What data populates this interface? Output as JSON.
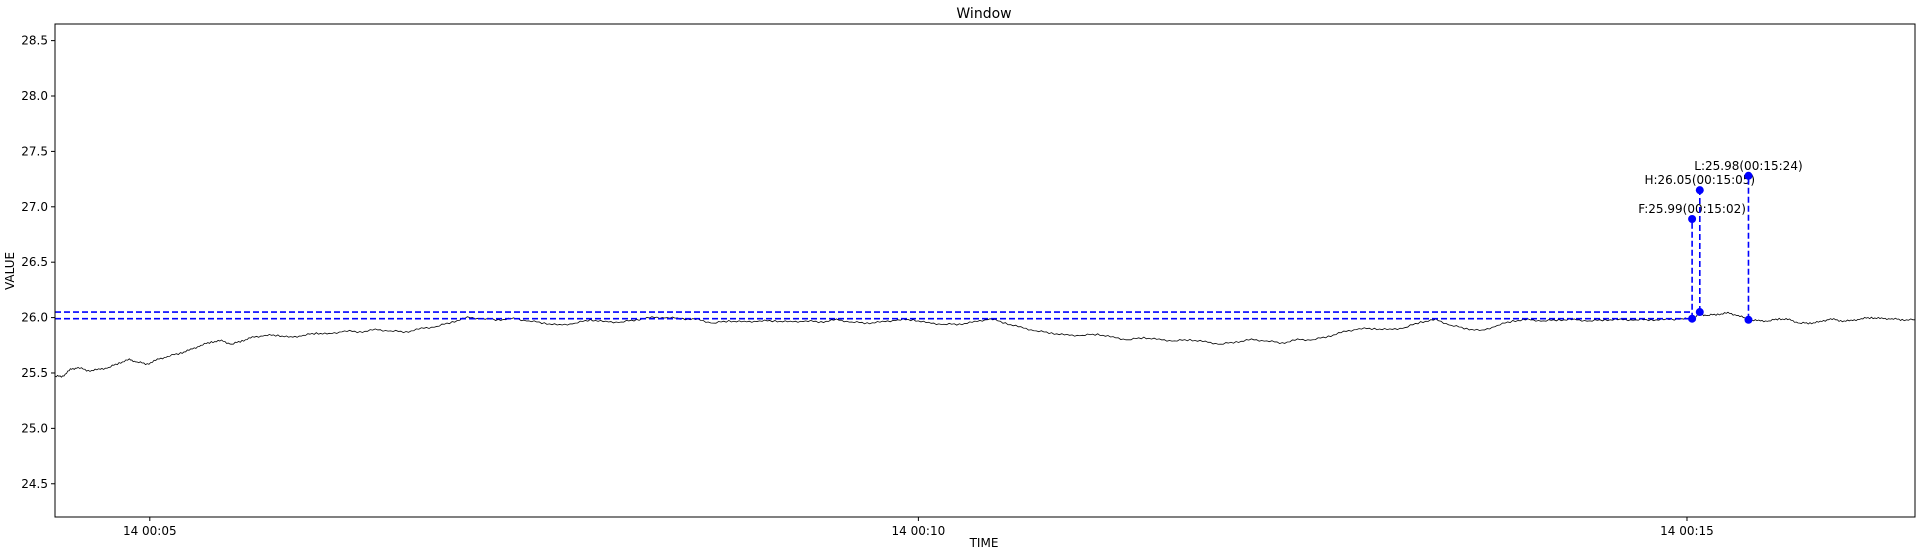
{
  "chart_data": {
    "type": "line",
    "title": "Window",
    "xlabel": "TIME",
    "ylabel": "VALUE",
    "ylim": [
      24.2,
      28.65
    ],
    "xlim_seconds": [
      263,
      989
    ],
    "yticks": [
      24.5,
      25.0,
      25.5,
      26.0,
      26.5,
      27.0,
      27.5,
      28.0,
      28.5
    ],
    "ytick_labels": [
      "24.5",
      "25.0",
      "25.5",
      "26.0",
      "26.5",
      "27.0",
      "27.5",
      "28.0",
      "28.5"
    ],
    "xticks": [
      {
        "t": 300,
        "label": "14 00:05"
      },
      {
        "t": 600,
        "label": "14 00:10"
      },
      {
        "t": 900,
        "label": "14 00:15"
      }
    ],
    "grid": false,
    "series": [
      {
        "color": "#000000",
        "points": [
          [
            263,
            25.47
          ],
          [
            266,
            25.47
          ],
          [
            269,
            25.53
          ],
          [
            272,
            25.55
          ],
          [
            276,
            25.52
          ],
          [
            280,
            25.53
          ],
          [
            284,
            25.55
          ],
          [
            288,
            25.59
          ],
          [
            292,
            25.62
          ],
          [
            295,
            25.6
          ],
          [
            299,
            25.58
          ],
          [
            303,
            25.62
          ],
          [
            307,
            25.65
          ],
          [
            312,
            25.68
          ],
          [
            316,
            25.71
          ],
          [
            320,
            25.75
          ],
          [
            324,
            25.78
          ],
          [
            328,
            25.79
          ],
          [
            332,
            25.76
          ],
          [
            336,
            25.79
          ],
          [
            340,
            25.82
          ],
          [
            345,
            25.84
          ],
          [
            350,
            25.84
          ],
          [
            355,
            25.82
          ],
          [
            360,
            25.84
          ],
          [
            365,
            25.86
          ],
          [
            370,
            25.85
          ],
          [
            376,
            25.88
          ],
          [
            382,
            25.87
          ],
          [
            388,
            25.89
          ],
          [
            394,
            25.88
          ],
          [
            400,
            25.87
          ],
          [
            406,
            25.9
          ],
          [
            412,
            25.92
          ],
          [
            418,
            25.96
          ],
          [
            424,
            26.0
          ],
          [
            430,
            25.99
          ],
          [
            436,
            25.98
          ],
          [
            442,
            25.99
          ],
          [
            448,
            25.97
          ],
          [
            454,
            25.95
          ],
          [
            460,
            25.93
          ],
          [
            466,
            25.95
          ],
          [
            472,
            25.98
          ],
          [
            478,
            25.96
          ],
          [
            484,
            25.96
          ],
          [
            490,
            25.98
          ],
          [
            496,
            26.0
          ],
          [
            502,
            26.0
          ],
          [
            508,
            25.99
          ],
          [
            514,
            25.98
          ],
          [
            520,
            25.95
          ],
          [
            526,
            25.97
          ],
          [
            532,
            25.96
          ],
          [
            538,
            25.97
          ],
          [
            544,
            25.97
          ],
          [
            550,
            25.96
          ],
          [
            556,
            25.97
          ],
          [
            562,
            25.96
          ],
          [
            568,
            25.98
          ],
          [
            574,
            25.96
          ],
          [
            580,
            25.95
          ],
          [
            586,
            25.96
          ],
          [
            592,
            25.98
          ],
          [
            598,
            25.98
          ],
          [
            604,
            25.95
          ],
          [
            610,
            25.94
          ],
          [
            616,
            25.94
          ],
          [
            622,
            25.96
          ],
          [
            628,
            25.99
          ],
          [
            634,
            25.95
          ],
          [
            640,
            25.91
          ],
          [
            646,
            25.88
          ],
          [
            652,
            25.86
          ],
          [
            658,
            25.84
          ],
          [
            664,
            25.84
          ],
          [
            670,
            25.85
          ],
          [
            676,
            25.82
          ],
          [
            682,
            25.8
          ],
          [
            688,
            25.82
          ],
          [
            694,
            25.8
          ],
          [
            700,
            25.79
          ],
          [
            706,
            25.8
          ],
          [
            712,
            25.78
          ],
          [
            718,
            25.76
          ],
          [
            724,
            25.78
          ],
          [
            730,
            25.8
          ],
          [
            736,
            25.79
          ],
          [
            742,
            25.77
          ],
          [
            748,
            25.8
          ],
          [
            754,
            25.8
          ],
          [
            760,
            25.83
          ],
          [
            766,
            25.87
          ],
          [
            772,
            25.9
          ],
          [
            778,
            25.9
          ],
          [
            784,
            25.89
          ],
          [
            790,
            25.91
          ],
          [
            796,
            25.96
          ],
          [
            802,
            25.98
          ],
          [
            808,
            25.93
          ],
          [
            814,
            25.9
          ],
          [
            820,
            25.88
          ],
          [
            826,
            25.93
          ],
          [
            832,
            25.97
          ],
          [
            838,
            25.98
          ],
          [
            844,
            25.97
          ],
          [
            850,
            25.98
          ],
          [
            856,
            25.98
          ],
          [
            862,
            25.97
          ],
          [
            868,
            25.98
          ],
          [
            874,
            25.98
          ],
          [
            880,
            25.98
          ],
          [
            886,
            25.98
          ],
          [
            892,
            25.98
          ],
          [
            898,
            25.99
          ],
          [
            902,
            25.99
          ],
          [
            905,
            26.03
          ],
          [
            908,
            26.02
          ],
          [
            912,
            26.03
          ],
          [
            916,
            26.04
          ],
          [
            920,
            26.02
          ],
          [
            924,
            25.98
          ],
          [
            928,
            25.97
          ],
          [
            932,
            25.97
          ],
          [
            936,
            25.99
          ],
          [
            940,
            25.98
          ],
          [
            944,
            25.95
          ],
          [
            948,
            25.95
          ],
          [
            952,
            25.96
          ],
          [
            956,
            25.99
          ],
          [
            960,
            25.97
          ],
          [
            964,
            25.97
          ],
          [
            968,
            25.99
          ],
          [
            972,
            26.0
          ],
          [
            976,
            25.99
          ],
          [
            980,
            25.99
          ],
          [
            984,
            25.98
          ],
          [
            989,
            25.98
          ]
        ]
      }
    ],
    "reference_lines_y": [
      26.05,
      25.99
    ],
    "markers": [
      {
        "t": 902,
        "y": 25.99,
        "label": "F:25.99(00:15:02)",
        "label_y": 26.89
      },
      {
        "t": 905,
        "y": 26.05,
        "label": "H:26.05(00:15:05)",
        "label_y": 27.15
      },
      {
        "t": 924,
        "y": 25.98,
        "label": "L:25.98(00:15:24)",
        "label_y": 27.28
      }
    ],
    "marker_color": "#0000ff"
  }
}
